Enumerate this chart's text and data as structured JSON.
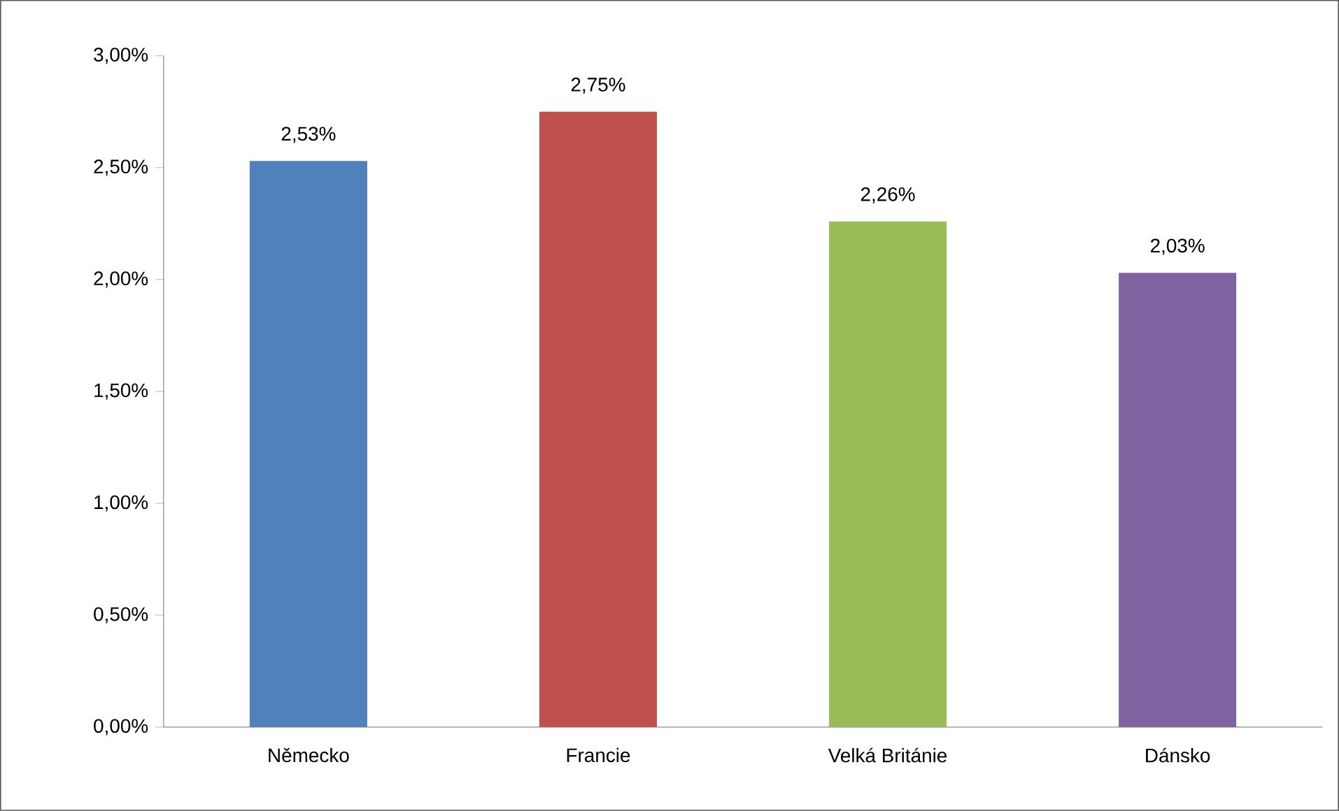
{
  "chart_data": {
    "type": "bar",
    "categories": [
      "Německo",
      "Francie",
      "Velká Británie",
      "Dánsko"
    ],
    "values": [
      2.53,
      2.75,
      2.26,
      2.03
    ],
    "colors": [
      "#4f81bd",
      "#c0504d",
      "#9bbb59",
      "#8064a2"
    ],
    "value_labels": [
      "2,53%",
      "2,75%",
      "2,26%",
      "2,03%"
    ],
    "ylim": [
      0,
      3
    ],
    "yticks": [
      {
        "value": 0,
        "label": "0,00%"
      },
      {
        "value": 0.5,
        "label": "0,50%"
      },
      {
        "value": 1,
        "label": "1,00%"
      },
      {
        "value": 1.5,
        "label": "1,50%"
      },
      {
        "value": 2,
        "label": "2,00%"
      },
      {
        "value": 2.5,
        "label": "2,50%"
      },
      {
        "value": 3,
        "label": "3,00%"
      }
    ]
  }
}
